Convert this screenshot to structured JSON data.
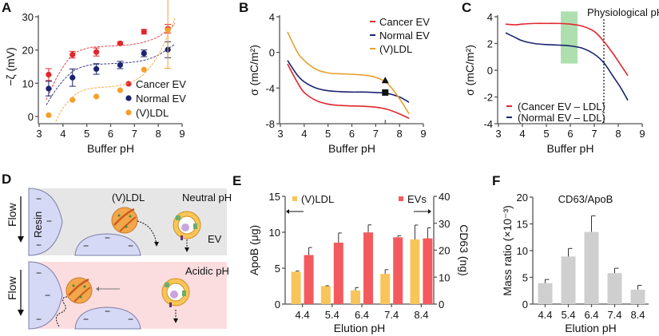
{
  "colors": {
    "cancer": "#e0262d",
    "normal": "#1b2370",
    "vldl": "#f5a02c",
    "vldl_line": "#e8a030",
    "e_vldl": "#f8c55a",
    "e_ev": "#f35a5e",
    "f_bar": "#cfcfcf",
    "green_band": "#9fdba0",
    "neutral_bg": "#e6e6e6",
    "acidic_bg": "#fbdde0",
    "resin": "#d6d9f5"
  },
  "chart_data": [
    {
      "panel": "A",
      "type": "scatter",
      "title": "",
      "xlabel": "Buffer pH",
      "ylabel": "−ζ (mV)",
      "xlim": [
        3,
        9
      ],
      "ylim": [
        0,
        30
      ],
      "xticks": [
        "3",
        "4",
        "5",
        "6",
        "7",
        "8",
        "9"
      ],
      "yticks": [
        "0",
        "10",
        "20",
        "30"
      ],
      "legend_position": "bottom-right",
      "series": [
        {
          "name": "Cancer EV",
          "color_key": "cancer",
          "x": [
            3.4,
            4.4,
            5.4,
            6.4,
            7.4,
            8.4
          ],
          "y": [
            12.6,
            18.6,
            19.4,
            22.0,
            25.5,
            26.4
          ],
          "err": [
            1.8,
            1.0,
            1.2,
            0.4,
            0.7,
            1.3
          ],
          "fit_x": [
            3.3,
            3.8,
            4.4,
            5.0,
            5.5,
            6.0,
            6.5,
            7.0,
            7.5,
            8.0,
            8.5,
            8.7
          ],
          "fit_y": [
            5.0,
            12.5,
            18.5,
            20.5,
            21.0,
            21.2,
            21.4,
            21.8,
            22.6,
            24.0,
            26.5,
            28.0
          ]
        },
        {
          "name": "Normal EV",
          "color_key": "normal",
          "x": [
            3.4,
            4.4,
            5.4,
            6.4,
            7.4,
            8.4
          ],
          "y": [
            8.4,
            11.7,
            14.3,
            15.5,
            19.0,
            20.1
          ],
          "err": [
            2.2,
            2.6,
            1.6,
            1.1,
            1.0,
            2.4
          ],
          "fit_x": [
            3.3,
            3.8,
            4.4,
            5.0,
            5.5,
            6.0,
            6.5,
            7.0,
            7.5,
            8.0,
            8.5,
            8.7
          ],
          "fit_y": [
            3.5,
            9.0,
            13.5,
            15.3,
            15.7,
            15.9,
            16.1,
            16.4,
            17.1,
            18.5,
            20.8,
            21.8
          ]
        },
        {
          "name": "(V)LDL",
          "color_key": "vldl",
          "x": [
            3.4,
            4.4,
            5.4,
            6.4,
            7.4,
            8.4
          ],
          "y": [
            0.4,
            5.0,
            6.0,
            7.9,
            14.1,
            26.0
          ],
          "err": [
            0,
            0,
            0,
            0,
            0,
            11.5
          ],
          "fit_x": [
            3.7,
            4.0,
            4.5,
            5.0,
            5.5,
            6.0,
            6.5,
            7.0,
            7.5,
            8.0,
            8.5,
            8.7
          ],
          "fit_y": [
            -1.5,
            2.5,
            6.5,
            8.2,
            8.7,
            9.0,
            9.5,
            10.8,
            13.5,
            18.5,
            26.0,
            29.5
          ]
        }
      ]
    },
    {
      "panel": "B",
      "type": "line",
      "title": "",
      "xlabel": "Buffer pH",
      "ylabel": "σ (mC/m²)",
      "xlim": [
        3,
        9
      ],
      "ylim": [
        -8,
        4
      ],
      "xticks": [
        "3",
        "4",
        "5",
        "6",
        "7",
        "8",
        "9"
      ],
      "yticks": [
        "-8",
        "-4",
        "0",
        "4"
      ],
      "legend_position": "top-right",
      "series": [
        {
          "name": "Cancer EV",
          "color_key": "cancer",
          "x": [
            3.3,
            3.7,
            4.0,
            4.5,
            5.0,
            5.5,
            6.0,
            6.5,
            7.0,
            7.5,
            8.0,
            8.4
          ],
          "y": [
            -1.3,
            -3.3,
            -4.5,
            -5.4,
            -5.8,
            -5.95,
            -6.0,
            -6.05,
            -6.15,
            -6.4,
            -6.9,
            -7.4
          ]
        },
        {
          "name": "Normal EV",
          "color_key": "normal",
          "x": [
            3.3,
            3.7,
            4.0,
            4.5,
            5.0,
            5.5,
            6.0,
            6.5,
            7.0,
            7.5,
            8.0,
            8.4
          ],
          "y": [
            -0.9,
            -2.5,
            -3.3,
            -4.0,
            -4.3,
            -4.4,
            -4.45,
            -4.45,
            -4.5,
            -4.6,
            -5.0,
            -5.6
          ]
        },
        {
          "name": "(V)LDL",
          "color_key": "vldl_line",
          "x": [
            3.3,
            3.7,
            4.0,
            4.5,
            5.0,
            5.5,
            6.0,
            6.5,
            7.0,
            7.5,
            8.0,
            8.4
          ],
          "y": [
            2.3,
            0.1,
            -0.9,
            -1.9,
            -2.3,
            -2.4,
            -2.45,
            -2.55,
            -2.8,
            -3.5,
            -5.2,
            -6.9
          ]
        }
      ],
      "markers": [
        {
          "name": "VLDL at pH 7.4",
          "shape": "triangle",
          "x": 7.4,
          "y": -3.1
        },
        {
          "name": "Normal EV at pH 7.4",
          "shape": "square",
          "x": 7.4,
          "y": -4.5
        }
      ]
    },
    {
      "panel": "C",
      "type": "line",
      "title": "",
      "xlabel": "Buffer pH",
      "ylabel": "σ (mC/m²)",
      "xlim": [
        3,
        9
      ],
      "ylim": [
        -4,
        4
      ],
      "xticks": [
        "3",
        "4",
        "5",
        "6",
        "7",
        "8",
        "9"
      ],
      "yticks": [
        "-4",
        "-2",
        "0",
        "2",
        "4"
      ],
      "legend_position": "bottom-left",
      "annotation": "Physiological pH",
      "vline_x": 7.4,
      "band": {
        "x": [
          5.6,
          6.3
        ],
        "y": [
          0.5,
          4.4
        ]
      },
      "series": [
        {
          "name": "(Cancer EV – LDL)",
          "color_key": "cancer",
          "x": [
            3.3,
            3.7,
            4.0,
            4.5,
            5.0,
            5.5,
            6.0,
            6.5,
            7.0,
            7.4,
            7.8,
            8.1,
            8.4
          ],
          "y": [
            3.45,
            3.4,
            3.45,
            3.5,
            3.5,
            3.5,
            3.45,
            3.3,
            2.9,
            2.15,
            1.2,
            0.4,
            -0.4
          ]
        },
        {
          "name": "(Normal EV – LDL)",
          "color_key": "normal",
          "x": [
            3.3,
            3.7,
            4.0,
            4.5,
            5.0,
            5.5,
            6.0,
            6.5,
            7.0,
            7.4,
            7.8,
            8.1,
            8.4
          ],
          "y": [
            2.8,
            2.45,
            2.2,
            2.0,
            1.92,
            1.88,
            1.82,
            1.65,
            1.2,
            0.55,
            -0.5,
            -1.3,
            -2.25
          ]
        }
      ]
    },
    {
      "panel": "E",
      "type": "bar",
      "title": "",
      "xlabel": "Elution pH",
      "ylabel": "ApoB (μg)",
      "ylabel_right": "CD63 (ng)",
      "categories": [
        "4.4",
        "5.4",
        "6.4",
        "7.4",
        "8.4"
      ],
      "ylim": [
        0,
        15
      ],
      "ylim_right": [
        0,
        40
      ],
      "yticks": [
        "0",
        "5",
        "10",
        "15"
      ],
      "yticks_right": [
        "0",
        "10",
        "20",
        "30",
        "40"
      ],
      "legend_position": "top",
      "series": [
        {
          "name": "(V)LDL",
          "axis": "left",
          "color_key": "e_vldl",
          "values": [
            4.5,
            2.5,
            1.9,
            4.2,
            9.0
          ],
          "err": [
            0.1,
            0.05,
            0.4,
            0.6,
            2.0
          ]
        },
        {
          "name": "EVs",
          "axis": "right",
          "color_key": "e_ev",
          "values": [
            18.2,
            22.8,
            26.6,
            24.8,
            24.4
          ],
          "err": [
            2.8,
            3.6,
            2.8,
            0.6,
            3.9
          ]
        }
      ]
    },
    {
      "panel": "F",
      "type": "bar",
      "title": "CD63/ApoB",
      "xlabel": "Elution pH",
      "ylabel": "Mass ratio (×10⁻³)",
      "categories": [
        "4.4",
        "5.4",
        "6.4",
        "7.4",
        "8.4"
      ],
      "ylim": [
        0,
        20
      ],
      "yticks": [
        "0",
        "5",
        "10",
        "15",
        "20"
      ],
      "series": [
        {
          "name": "CD63/ApoB",
          "color_key": "f_bar",
          "values": [
            3.9,
            8.9,
            13.5,
            5.8,
            2.7
          ],
          "err": [
            0.7,
            1.5,
            3.0,
            0.9,
            0.8
          ]
        }
      ]
    }
  ],
  "panel_letters": [
    "A",
    "B",
    "C",
    "D",
    "E",
    "F"
  ],
  "diagram_d": {
    "vldl_label": "(V)LDL",
    "ev_label": "EV",
    "resin_label": "Resin",
    "flow_label": "Flow",
    "neutral_label": "Neutral pH",
    "acidic_label": "Acidic pH",
    "charge_symbol": "−"
  },
  "e_arrows": {
    "left": "←",
    "right": "→"
  }
}
